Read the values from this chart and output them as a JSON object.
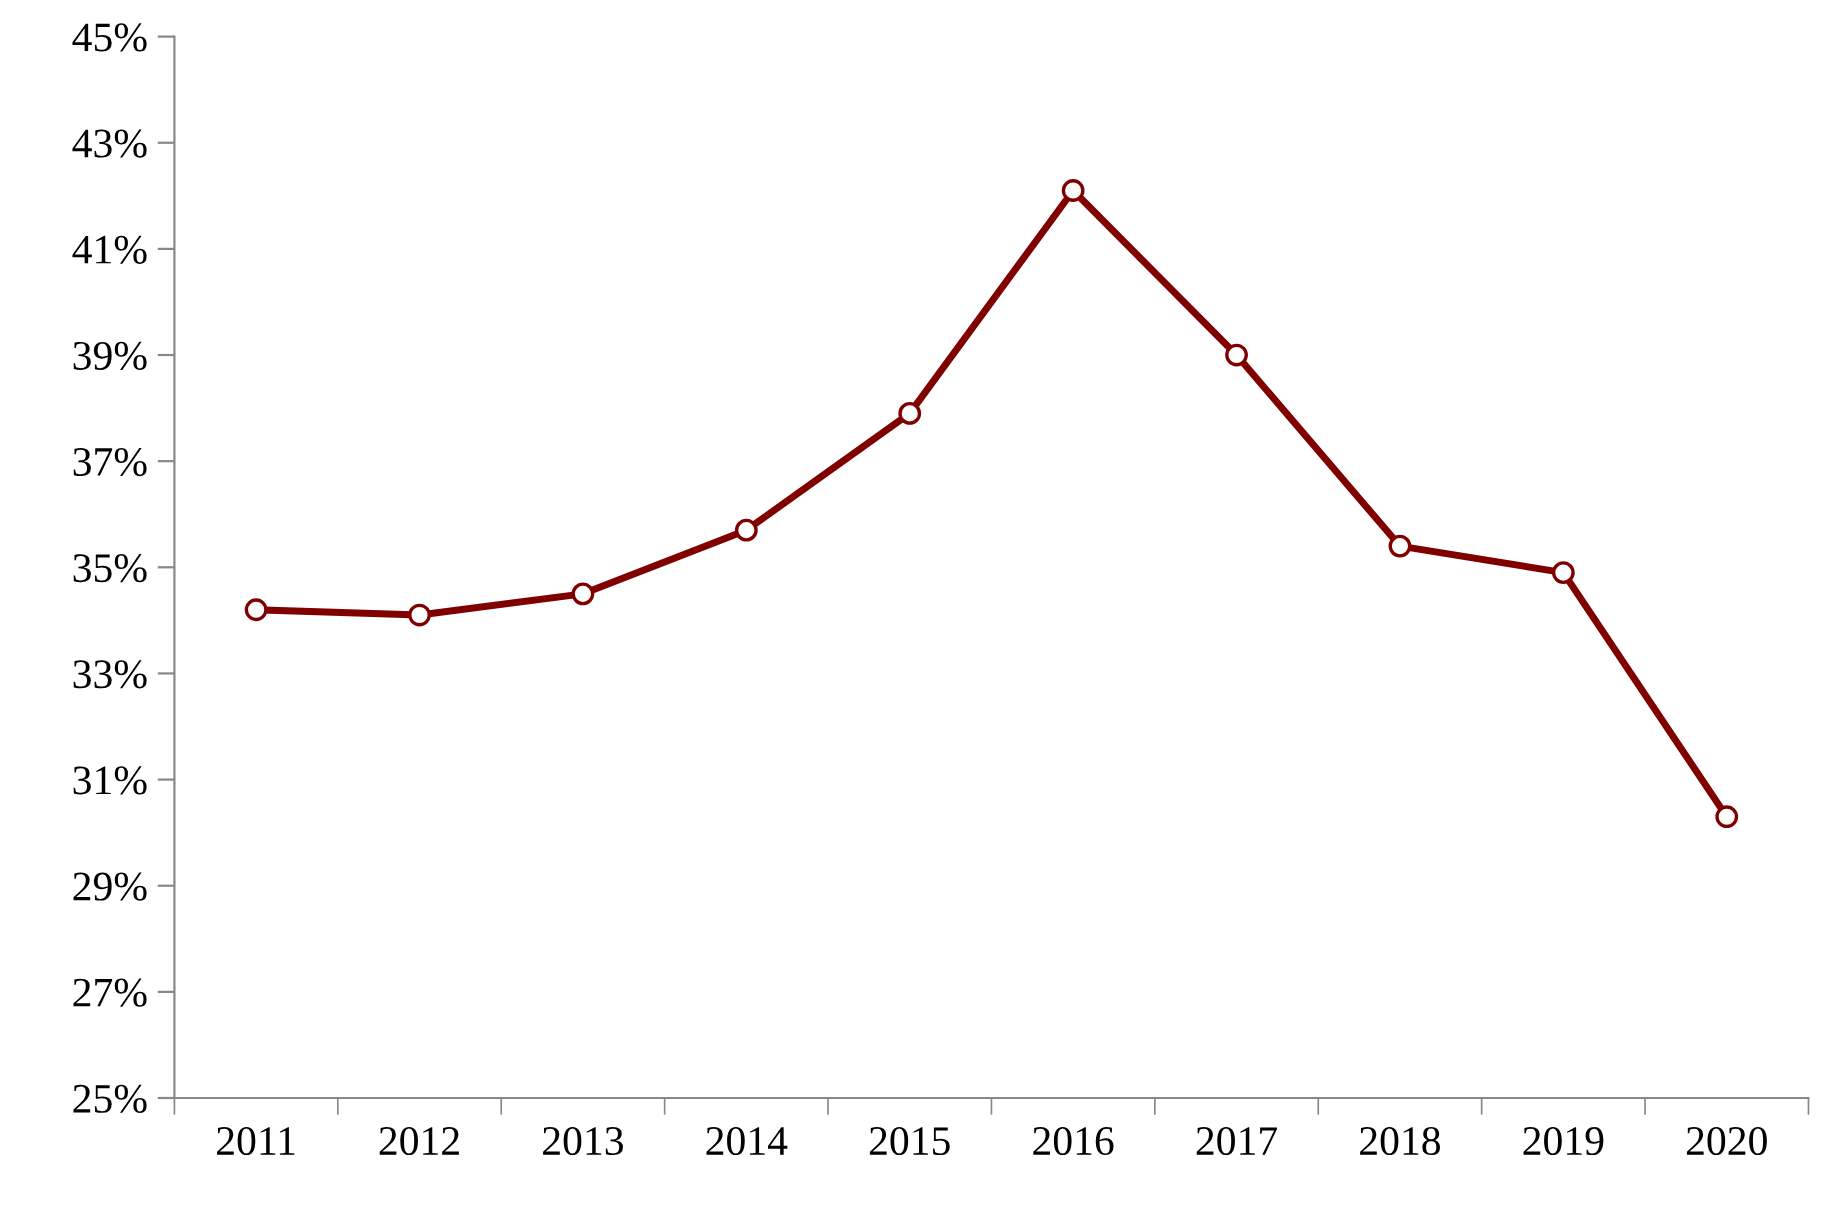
{
  "chart_data": {
    "type": "line",
    "categories": [
      "2011",
      "2012",
      "2013",
      "2014",
      "2015",
      "2016",
      "2017",
      "2018",
      "2019",
      "2020"
    ],
    "series": [
      {
        "color": "#800000",
        "values": [
          34.2,
          34.1,
          34.5,
          35.7,
          37.9,
          42.1,
          39.0,
          35.4,
          34.9,
          30.3
        ]
      }
    ],
    "ylim": [
      25,
      45
    ],
    "yticks": [
      {
        "value": 25,
        "label": "25%"
      },
      {
        "value": 27,
        "label": "27%"
      },
      {
        "value": 29,
        "label": "29%"
      },
      {
        "value": 31,
        "label": "31%"
      },
      {
        "value": 33,
        "label": "33%"
      },
      {
        "value": 35,
        "label": "35%"
      },
      {
        "value": 37,
        "label": "37%"
      },
      {
        "value": 39,
        "label": "39%"
      },
      {
        "value": 41,
        "label": "41%"
      },
      {
        "value": 43,
        "label": "43%"
      },
      {
        "value": 45,
        "label": "45%"
      }
    ],
    "marker": "circle",
    "line_style": "solid",
    "grid": false,
    "legend": false
  }
}
